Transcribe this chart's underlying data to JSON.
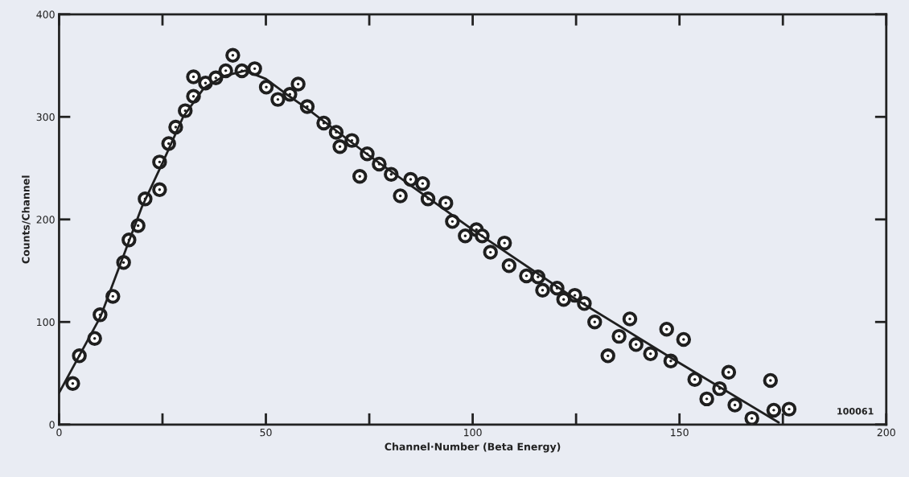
{
  "chart_data": {
    "type": "scatter",
    "xlabel": "Channel·Number (Beta Energy)",
    "ylabel": "Counts/Channel",
    "xlim": [
      0,
      200
    ],
    "ylim": [
      0,
      400
    ],
    "xticks": [
      0,
      {
        "value": 25,
        "label": null
      },
      50,
      {
        "value": 75,
        "label": null
      },
      100,
      {
        "value": 125,
        "label": null
      },
      150,
      {
        "value": 175,
        "label": null
      },
      200
    ],
    "yticks": [
      0,
      100,
      200,
      300,
      400
    ],
    "grid": false,
    "marker": "circle",
    "annotations": [
      "100061"
    ],
    "series": [
      {
        "color": "#1f1f1f",
        "x": [
          3.3,
          4.9,
          8.6,
          9.9,
          13,
          15.6,
          16.9,
          19.1,
          20.8,
          24.3,
          24.3,
          26.5,
          28.2,
          30.5,
          32.5,
          32.5,
          35.4,
          37.9,
          40.3,
          42,
          44.2,
          47.3,
          50.1,
          52.9,
          55.8,
          57.8,
          60,
          64,
          67,
          67.9,
          70.8,
          72.7,
          74.5,
          77.4,
          80.3,
          82.5,
          85,
          87.9,
          89.2,
          93.5,
          95.1,
          98.2,
          100.9,
          102.3,
          104.3,
          107.7,
          108.8,
          113,
          115.8,
          116.9,
          120.4,
          122,
          124.7,
          127,
          129.5,
          132.7,
          135.4,
          138,
          139.5,
          143,
          146.9,
          147.9,
          151,
          153.7,
          156.6,
          159.7,
          161.9,
          163.4,
          167.5,
          172,
          172.8,
          176.5
        ],
        "values": [
          40,
          67,
          84,
          107,
          125,
          158,
          180,
          194,
          220,
          229,
          256,
          274,
          290,
          306,
          320,
          339,
          333,
          338,
          345,
          360,
          345,
          347,
          329,
          317,
          322,
          332,
          310,
          294,
          285,
          271,
          277,
          242,
          264,
          254,
          244,
          223,
          239,
          235,
          220,
          216,
          198,
          184,
          190,
          184,
          168,
          177,
          155,
          145,
          144,
          131,
          133,
          122,
          126,
          118,
          100,
          67,
          86,
          103,
          78,
          69,
          93,
          62,
          83,
          44,
          25,
          35,
          51,
          19,
          6,
          43,
          14,
          15
        ]
      },
      {
        "type": "line",
        "color": "#1f1f1f",
        "marker": "none",
        "line_style": "solid",
        "x": [
          0,
          10,
          20,
          25,
          30,
          35,
          40,
          45,
          50,
          55,
          60,
          75,
          100,
          125,
          150,
          174
        ],
        "values": [
          31,
          105,
          212,
          255,
          300,
          328,
          340,
          345,
          337,
          322,
          308,
          262,
          190,
          122,
          60,
          2
        ]
      }
    ]
  }
}
